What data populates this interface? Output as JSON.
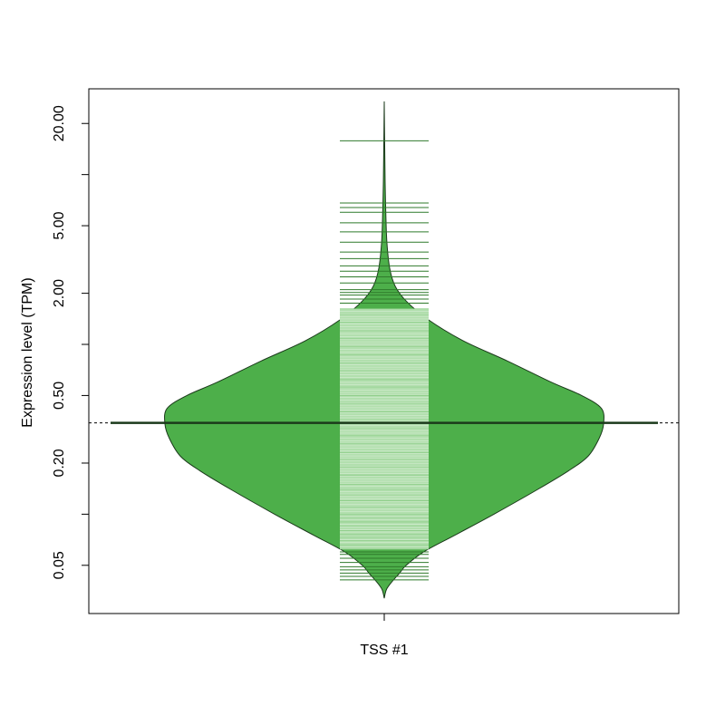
{
  "chart_data": {
    "type": "beanplot",
    "ylabel": "Expression level (TPM)",
    "y_scale": "log",
    "ylim": [
      0.026,
      32
    ],
    "y_ticks": [
      {
        "value": 0.05,
        "label": "0.05"
      },
      {
        "value": 0.1,
        "label": ""
      },
      {
        "value": 0.2,
        "label": "0.20"
      },
      {
        "value": 0.5,
        "label": "0.50"
      },
      {
        "value": 1,
        "label": ""
      },
      {
        "value": 2,
        "label": "2.00"
      },
      {
        "value": 5,
        "label": "5.00"
      },
      {
        "value": 10,
        "label": ""
      },
      {
        "value": 20,
        "label": "20.00"
      }
    ],
    "categories": [
      "TSS #1"
    ],
    "overall_mean": 0.345,
    "group_mean": 0.345,
    "colors": {
      "bean_fill": "#4daf4a",
      "bean_border": "#1b3a1b",
      "line_light": "#b2dfae",
      "line_dark": "#2f7a2b",
      "mean_line": "#1b3a1b"
    },
    "density": [
      {
        "y": 0.032,
        "w": 0.0
      },
      {
        "y": 0.036,
        "w": 0.01
      },
      {
        "y": 0.04,
        "w": 0.035
      },
      {
        "y": 0.045,
        "w": 0.07
      },
      {
        "y": 0.05,
        "w": 0.1
      },
      {
        "y": 0.06,
        "w": 0.18
      },
      {
        "y": 0.075,
        "w": 0.32
      },
      {
        "y": 0.1,
        "w": 0.5
      },
      {
        "y": 0.14,
        "w": 0.7
      },
      {
        "y": 0.18,
        "w": 0.84
      },
      {
        "y": 0.22,
        "w": 0.93
      },
      {
        "y": 0.28,
        "w": 0.98
      },
      {
        "y": 0.34,
        "w": 1.0
      },
      {
        "y": 0.42,
        "w": 0.99
      },
      {
        "y": 0.5,
        "w": 0.9
      },
      {
        "y": 0.6,
        "w": 0.76
      },
      {
        "y": 0.8,
        "w": 0.56
      },
      {
        "y": 1.05,
        "w": 0.36
      },
      {
        "y": 1.4,
        "w": 0.2
      },
      {
        "y": 1.8,
        "w": 0.1
      },
      {
        "y": 2.2,
        "w": 0.05
      },
      {
        "y": 2.8,
        "w": 0.025
      },
      {
        "y": 4.0,
        "w": 0.012
      },
      {
        "y": 6.0,
        "w": 0.007
      },
      {
        "y": 9.0,
        "w": 0.004
      },
      {
        "y": 15.0,
        "w": 0.002
      },
      {
        "y": 27.0,
        "w": 0.0
      }
    ],
    "observations_dark": [
      0.041,
      0.043,
      0.045,
      0.047,
      0.049,
      0.052,
      0.055,
      0.058,
      0.06,
      0.063,
      0.066,
      0.07,
      0.073,
      0.076,
      0.08,
      0.085,
      0.09,
      0.095,
      0.1,
      0.11,
      0.12,
      0.13,
      0.14,
      0.15,
      0.17,
      0.19,
      0.21,
      0.23,
      0.26,
      0.29,
      0.32,
      0.36,
      0.4,
      0.45,
      0.5,
      0.56,
      0.62,
      0.7,
      0.78,
      0.87,
      0.97,
      1.08,
      1.2,
      1.35,
      1.5,
      1.62,
      1.75,
      1.85,
      1.95,
      2.02,
      2.1,
      2.3,
      2.5,
      2.7,
      2.9,
      3.2,
      3.5,
      4.0,
      4.6,
      5.2,
      6.0,
      6.4,
      6.8,
      15.8
    ],
    "observations_light_band": [
      0.062,
      1.62
    ]
  }
}
